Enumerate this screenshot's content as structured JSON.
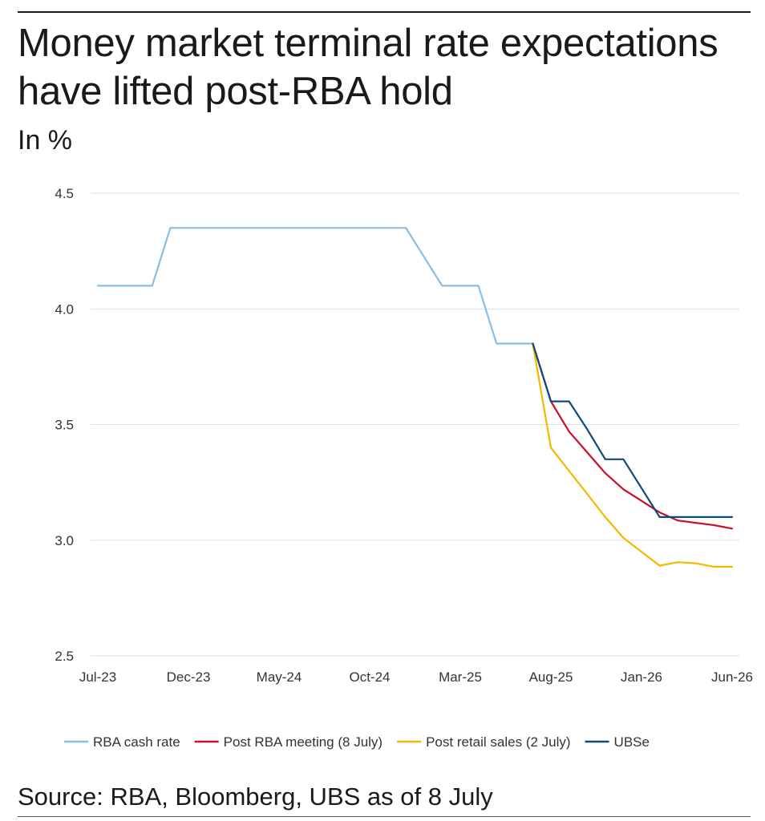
{
  "chart_data": {
    "type": "line",
    "title": "Money market terminal rate expectations have lifted post-RBA hold",
    "subtitle": "In %",
    "source": "Source: RBA, Bloomberg, UBS as of 8 July",
    "xlabel": "",
    "ylabel": "",
    "x_range": [
      0,
      35
    ],
    "ylim": [
      2.5,
      4.5
    ],
    "y_ticks": [
      {
        "value": 4.5,
        "label": "4.5"
      },
      {
        "value": 4.0,
        "label": "4.0"
      },
      {
        "value": 3.5,
        "label": "3.5"
      },
      {
        "value": 3.0,
        "label": "3.0"
      },
      {
        "value": 2.5,
        "label": "2.5"
      }
    ],
    "x_ticks": [
      {
        "value": 0,
        "label": "Jul-23"
      },
      {
        "value": 5,
        "label": "Dec-23"
      },
      {
        "value": 10,
        "label": "May-24"
      },
      {
        "value": 15,
        "label": "Oct-24"
      },
      {
        "value": 20,
        "label": "Mar-25"
      },
      {
        "value": 25,
        "label": "Aug-25"
      },
      {
        "value": 30,
        "label": "Jan-26"
      },
      {
        "value": 35,
        "label": "Jun-26"
      }
    ],
    "grid": true,
    "legend_position": "bottom",
    "series": [
      {
        "name": "RBA cash rate",
        "color": "#8bbde3",
        "points": [
          [
            0,
            4.1
          ],
          [
            3,
            4.1
          ],
          [
            4,
            4.35
          ],
          [
            17,
            4.35
          ],
          [
            19,
            4.1
          ],
          [
            21,
            4.1
          ],
          [
            22,
            3.85
          ],
          [
            24,
            3.85
          ]
        ]
      },
      {
        "name": "Post RBA meeting (8 July)",
        "color": "#c8102e",
        "points": [
          [
            24,
            3.85
          ],
          [
            25,
            3.6
          ],
          [
            26,
            3.47
          ],
          [
            27,
            3.38
          ],
          [
            28,
            3.29
          ],
          [
            29,
            3.22
          ],
          [
            30,
            3.17
          ],
          [
            31,
            3.12
          ],
          [
            32,
            3.085
          ],
          [
            33,
            3.075
          ],
          [
            34,
            3.065
          ],
          [
            35,
            3.05
          ]
        ]
      },
      {
        "name": "Post retail sales (2 July)",
        "color": "#f5b800",
        "points": [
          [
            24,
            3.85
          ],
          [
            25,
            3.4
          ],
          [
            26,
            3.3
          ],
          [
            27,
            3.2
          ],
          [
            28,
            3.1
          ],
          [
            29,
            3.01
          ],
          [
            30,
            2.95
          ],
          [
            31,
            2.89
          ],
          [
            32,
            2.905
          ],
          [
            33,
            2.9
          ],
          [
            34,
            2.885
          ],
          [
            35,
            2.885
          ]
        ]
      },
      {
        "name": "UBSe",
        "color": "#0e4a7a",
        "points": [
          [
            24,
            3.85
          ],
          [
            25,
            3.6
          ],
          [
            26,
            3.6
          ],
          [
            27,
            3.48
          ],
          [
            28,
            3.35
          ],
          [
            29,
            3.35
          ],
          [
            30,
            3.225
          ],
          [
            31,
            3.1
          ],
          [
            32,
            3.1
          ],
          [
            33,
            3.1
          ],
          [
            34,
            3.1
          ],
          [
            35,
            3.1
          ]
        ]
      }
    ]
  }
}
